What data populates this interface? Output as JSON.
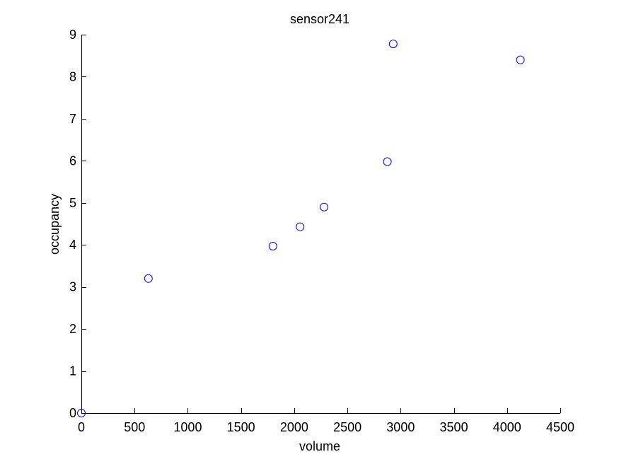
{
  "chart_data": {
    "type": "scatter",
    "title": "sensor241",
    "xlabel": "volume",
    "ylabel": "occupancy",
    "xlim": [
      0,
      4500
    ],
    "ylim": [
      0,
      9
    ],
    "xticks": [
      0,
      500,
      1000,
      1500,
      2000,
      2500,
      3000,
      3500,
      4000,
      4500
    ],
    "yticks": [
      0,
      1,
      2,
      3,
      4,
      5,
      6,
      7,
      8,
      9
    ],
    "grid": false,
    "legend": "none",
    "marker": "circle-open",
    "marker_color": "#0000ff",
    "series": [
      {
        "x": [
          0,
          630,
          1800,
          2055,
          2280,
          2875,
          2930,
          4125
        ],
        "y": [
          0,
          3.2,
          3.97,
          4.43,
          4.9,
          5.98,
          8.78,
          8.4
        ]
      }
    ]
  }
}
